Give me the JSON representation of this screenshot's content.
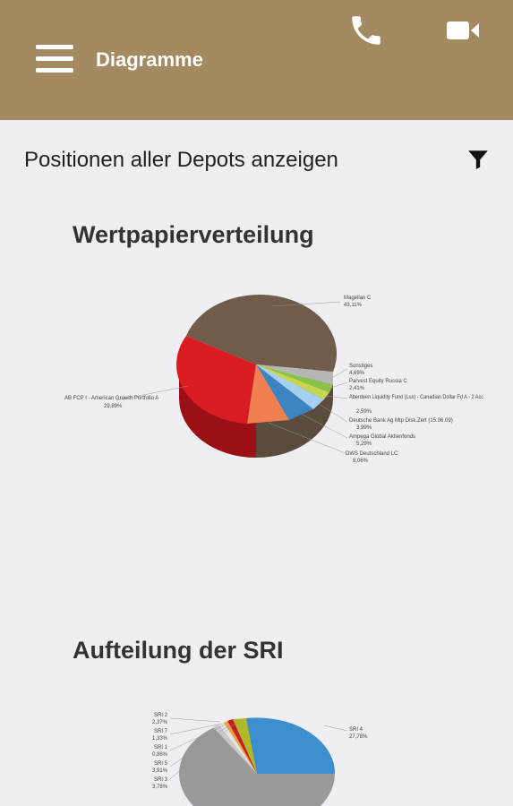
{
  "header": {
    "title": "Diagramme",
    "menu_icon": "hamburger-menu-icon",
    "phone_icon": "phone-icon",
    "video_icon": "video-camera-icon",
    "background_color": "#a48a60"
  },
  "filter": {
    "label": "Positionen aller Depots anzeigen",
    "icon": "filter-icon"
  },
  "section1": {
    "title": "Wertpapierverteilung"
  },
  "section2": {
    "title": "Aufteilung der SRI"
  },
  "chart_data": [
    {
      "type": "pie",
      "title": "Wertpapierverteilung",
      "slices": [
        {
          "name": "Magellan C",
          "value_label": "43,11%",
          "value": 43.11,
          "color": "#6f5c4a"
        },
        {
          "name": "Sonstiges",
          "value_label": "4,69%",
          "value": 4.69,
          "color": "#b6b6b6"
        },
        {
          "name": "Parvest Equity Russia C",
          "value_label": "2,41%",
          "value": 2.41,
          "color": "#8bc34a"
        },
        {
          "name": "Aberdeen Liquidity Fund (Lux) - Canadian Dollar Fd A - 2 Acc",
          "value_label": "2,59%",
          "value": 2.59,
          "color": "#c7d64f"
        },
        {
          "name": "Deutsche Bank Ag Mtp Disk.Zert (15.06.09)",
          "value_label": "3,99%",
          "value": 3.99,
          "color": "#a6d0ee"
        },
        {
          "name": "Ampega Global Aktienfonds",
          "value_label": "5,29%",
          "value": 5.29,
          "color": "#3d84c3"
        },
        {
          "name": "DWS Deutschland LC",
          "value_label": "8,06%",
          "value": 8.06,
          "color": "#f08050"
        },
        {
          "name": "AB FCP I - American Growth Portfolio A",
          "value_label": "29,89%",
          "value": 29.89,
          "color": "#d81c22"
        }
      ]
    },
    {
      "type": "pie",
      "title": "Aufteilung der SRI",
      "slices": [
        {
          "name": "SRI 2",
          "value_label": "2,37%",
          "value": 2.37,
          "color": "#c9c9c9"
        },
        {
          "name": "SRI 7",
          "value_label": "1,33%",
          "value": 1.33,
          "color": "#e3e3e3"
        },
        {
          "name": "SRI 1",
          "value_label": "0,86%",
          "value": 0.86,
          "color": "#f0a040"
        },
        {
          "name": "SRI 5",
          "value_label": "3,91%",
          "value": 3.91,
          "color": "#b0b92a"
        },
        {
          "name": "SRI 3",
          "value_label": "3,78%",
          "value": 3.78,
          "color": "#c42020"
        },
        {
          "name": "SRI 4",
          "value_label": "27,78%",
          "value": 27.78,
          "color": "#3d8fcf"
        }
      ]
    }
  ]
}
